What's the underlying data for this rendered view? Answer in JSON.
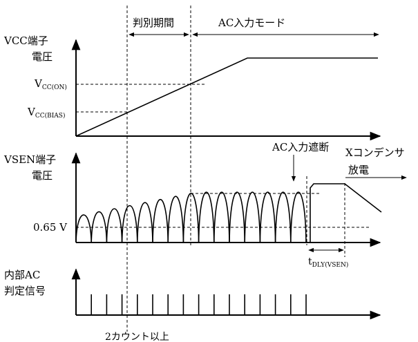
{
  "phases": {
    "judgement": "判別期間",
    "ac_mode": "AC入力モード"
  },
  "vcc": {
    "label_line1": "VCC端子",
    "label_line2": "電圧",
    "ref_on": {
      "main": "V",
      "sub": "CC(ON)"
    },
    "ref_bias": {
      "main": "V",
      "sub": "CC(BIAS)"
    }
  },
  "vsen": {
    "label_line1": "VSEN端子",
    "label_line2": "電圧",
    "ref_label": "0.65 V",
    "ac_cutoff": "AC入力遮断",
    "discharge_line1": "Xコンデンサ",
    "discharge_line2": "放電",
    "delay": {
      "main": "t",
      "sub": "DLY(VSEN)"
    }
  },
  "acdet": {
    "label_line1": "内部AC",
    "label_line2": "判定信号",
    "pulse_count": 15
  },
  "bottom_note": "2カウント以上"
}
